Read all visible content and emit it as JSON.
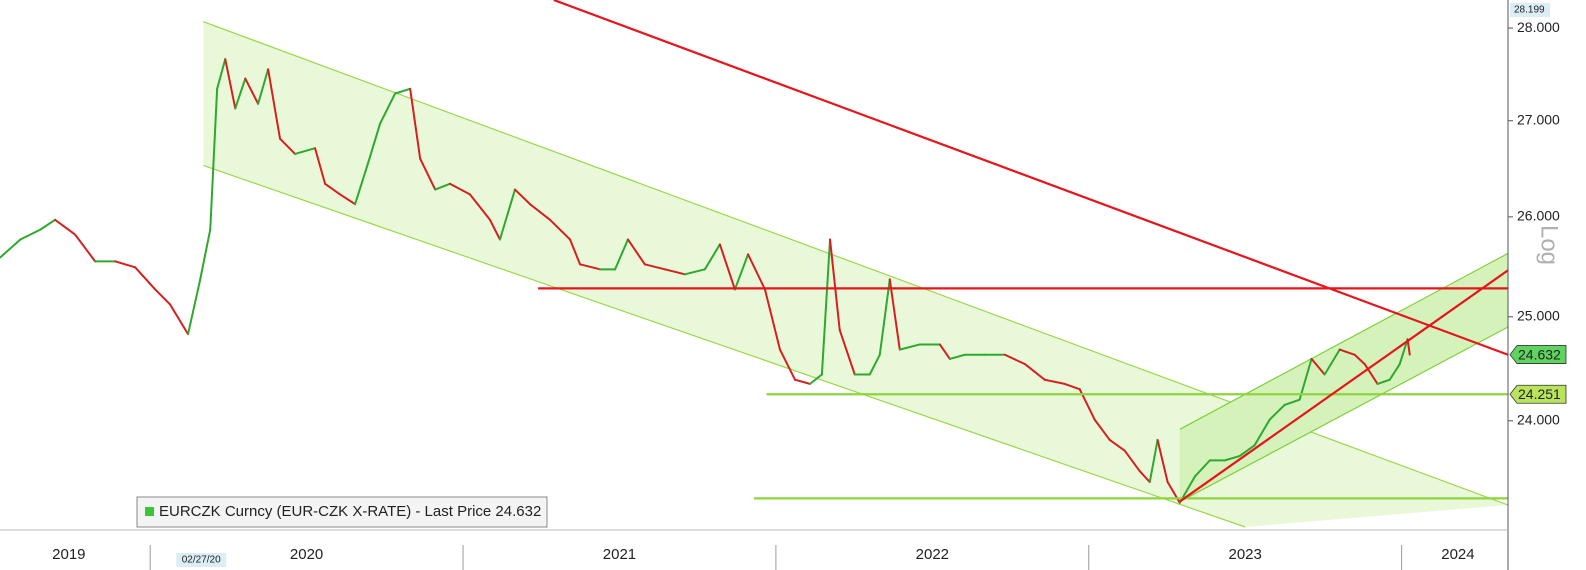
{
  "chart_data": {
    "type": "line",
    "log_scale": true,
    "scale_label": "Log",
    "up_color": "#2fa82f",
    "down_color": "#d61f1f",
    "xlim": [
      2019.52,
      2024.34
    ],
    "ylim": [
      23.02,
      28.31
    ],
    "yticks": [
      {
        "value": 24,
        "label": "24.000"
      },
      {
        "value": 25,
        "label": "25.000"
      },
      {
        "value": 26,
        "label": "26.000"
      },
      {
        "value": 27,
        "label": "27.000"
      },
      {
        "value": 28,
        "label": "28.000"
      }
    ],
    "xticks": [
      {
        "value": 2019.74,
        "label": "2019"
      },
      {
        "value": 2020.5,
        "label": "2020"
      },
      {
        "value": 2021.5,
        "label": "2021"
      },
      {
        "value": 2022.5,
        "label": "2022"
      },
      {
        "value": 2023.5,
        "label": "2023"
      },
      {
        "value": 2024.18,
        "label": "2024"
      }
    ],
    "annotation": {
      "text": "02/27/20",
      "x": 2020.16
    },
    "high_label": 28.199,
    "price_tags": [
      {
        "value": 24.632,
        "color": "#5fd35f"
      },
      {
        "value": 24.251,
        "color": "#b9e35c"
      }
    ],
    "channels": [
      {
        "fill": "#eaf8da",
        "color": "#9ad84a",
        "upper": [
          [
            2020.17,
            28.07
          ],
          [
            2024.34,
            23.22
          ]
        ],
        "lower": [
          [
            2020.17,
            26.53
          ],
          [
            2023.5,
            23.02
          ]
        ]
      },
      {
        "fill": "#d6f2bb",
        "color": "#7fd03a",
        "upper": [
          [
            2023.291,
            23.92
          ],
          [
            2024.34,
            25.63
          ]
        ],
        "lower": [
          [
            2023.291,
            23.25
          ],
          [
            2024.34,
            24.9
          ]
        ]
      }
    ],
    "lines": [
      {
        "color": "#8ed43c",
        "points": [
          [
            2021.97,
            24.251
          ],
          [
            2024.34,
            24.251
          ]
        ]
      },
      {
        "color": "#8ed43c",
        "points": [
          [
            2021.93,
            23.28
          ],
          [
            2024.34,
            23.28
          ]
        ]
      },
      {
        "color": "#e8141b",
        "points": [
          [
            2021.29,
            28.31
          ],
          [
            2024.34,
            24.63
          ]
        ]
      },
      {
        "color": "#e8141b",
        "points": [
          [
            2021.24,
            25.28
          ],
          [
            2024.34,
            25.28
          ]
        ]
      },
      {
        "color": "#e8141b",
        "points": [
          [
            2023.29,
            23.25
          ],
          [
            2024.34,
            25.46
          ]
        ]
      }
    ],
    "series": [
      {
        "name": "EURCZK Curncy (EUR-CZK X-RATE) - Last Price 24.632",
        "color": "#3cc43c",
        "x": [
          2019.521,
          2019.585,
          2019.649,
          2019.696,
          2019.76,
          2019.824,
          2019.888,
          2019.952,
          2020.016,
          2020.064,
          2020.121,
          2020.16,
          2020.192,
          2020.214,
          2020.24,
          2020.272,
          2020.304,
          2020.345,
          2020.377,
          2020.415,
          2020.463,
          2020.527,
          2020.559,
          2020.607,
          2020.655,
          2020.696,
          2020.735,
          2020.783,
          2020.831,
          2020.863,
          2020.911,
          2020.958,
          2021.022,
          2021.086,
          2021.118,
          2021.166,
          2021.214,
          2021.278,
          2021.342,
          2021.374,
          2021.438,
          2021.486,
          2021.527,
          2021.581,
          2021.645,
          2021.709,
          2021.773,
          2021.821,
          2021.869,
          2021.911,
          2021.965,
          2022.013,
          2022.061,
          2022.109,
          2022.147,
          2022.173,
          2022.204,
          2022.252,
          2022.3,
          2022.332,
          2022.364,
          2022.396,
          2022.46,
          2022.524,
          2022.556,
          2022.604,
          2022.668,
          2022.732,
          2022.796,
          2022.859,
          2022.923,
          2022.971,
          2023.019,
          2023.067,
          2023.115,
          2023.163,
          2023.195,
          2023.22,
          2023.252,
          2023.291,
          2023.339,
          2023.387,
          2023.435,
          2023.482,
          2023.53,
          2023.578,
          2023.626,
          2023.674,
          2023.712,
          2023.754,
          2023.802,
          2023.85,
          2023.882,
          2023.923,
          2023.962,
          2023.994,
          2024.019,
          2024.026
        ],
        "values": [
          25.59,
          25.77,
          25.87,
          25.97,
          25.82,
          25.55,
          25.55,
          25.49,
          25.27,
          25.12,
          24.83,
          25.37,
          25.87,
          27.34,
          27.66,
          27.13,
          27.45,
          27.18,
          27.55,
          26.81,
          26.65,
          26.71,
          26.34,
          26.23,
          26.13,
          26.55,
          26.97,
          27.29,
          27.34,
          26.6,
          26.28,
          26.34,
          26.23,
          25.97,
          25.77,
          26.28,
          26.13,
          25.97,
          25.77,
          25.52,
          25.47,
          25.47,
          25.77,
          25.52,
          25.47,
          25.42,
          25.47,
          25.72,
          25.27,
          25.62,
          25.27,
          24.68,
          24.39,
          24.35,
          24.44,
          25.77,
          24.87,
          24.44,
          24.44,
          24.63,
          25.37,
          24.68,
          24.73,
          24.73,
          24.59,
          24.63,
          24.63,
          24.63,
          24.54,
          24.39,
          24.35,
          24.3,
          24.01,
          23.82,
          23.72,
          23.53,
          23.43,
          23.82,
          23.43,
          23.24,
          23.48,
          23.63,
          23.63,
          23.67,
          23.77,
          24.01,
          24.15,
          24.2,
          24.59,
          24.44,
          24.68,
          24.63,
          24.54,
          24.35,
          24.39,
          24.54,
          24.78,
          24.632
        ]
      }
    ]
  }
}
